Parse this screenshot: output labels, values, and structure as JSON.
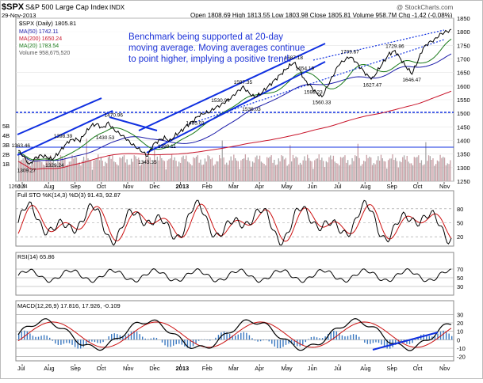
{
  "header": {
    "ticker": "$SPX",
    "name": "S&P 500 Large Cap Index",
    "exchange": "INDX",
    "date": "29-Nov-2013",
    "watermark": "@ StockCharts.com",
    "quote": "Open 1808.69  High 1813.55  Low 1803.98  Close 1805.81  Volume 958.7M  Chg -1.42 (-0.08%)"
  },
  "legend": {
    "main_title": "$SPX (Daily) 1805.81",
    "ma50": "MA(50) 1742.11",
    "ma200": "MA(200) 1650.24",
    "ma20": "MA(20) 1783.54",
    "volume": "Volume 958,675,520"
  },
  "annotation": "Benchmark being supported at 20-day moving average.   Moving averages continue to point higher, implying a positive trend.",
  "months": [
    "Jul",
    "Aug",
    "Sep",
    "Oct",
    "Nov",
    "Dec",
    "2013",
    "Feb",
    "Mar",
    "Apr",
    "May",
    "Jun",
    "Jul",
    "Aug",
    "Sep",
    "Oct",
    "Nov"
  ],
  "colors": {
    "price": "#000000",
    "ma50": "#1a1aa8",
    "ma200": "#c8142a",
    "ma20": "#1a7a1a",
    "volume_up": "#c9a0a6",
    "volume_down": "#a9a9a9",
    "trend": "#1030e0",
    "sto_k": "#000000",
    "sto_d": "#cc1111",
    "macd": "#000000",
    "signal": "#cc1111",
    "histogram": "#3a78c0"
  },
  "chart_data": [
    {
      "type": "line",
      "title": "$SPX (Daily) 1805.81",
      "y_ticks": [
        1250,
        1300,
        1350,
        1400,
        1450,
        1500,
        1550,
        1600,
        1650,
        1700,
        1750,
        1800,
        1850
      ],
      "volume_ticks": [
        "5B",
        "4B",
        "3B",
        "2B",
        "1B"
      ],
      "ylim": [
        1250,
        1850
      ],
      "price_labels": [
        "1363.46",
        "1309.27",
        "1266.74",
        "1398.39",
        "1329.24",
        "1430.53",
        "1470.96",
        "1343.35",
        "1398.11",
        "1485.01",
        "1530.94",
        "1597.35",
        "1536.03",
        "1687.18",
        "1654.19",
        "1598.23",
        "1560.33",
        "1709.67",
        "1627.47",
        "1729.86",
        "1646.47"
      ],
      "price_points": [
        {
          "t": 0,
          "v": 1363
        },
        {
          "t": 4,
          "v": 1340
        },
        {
          "t": 8,
          "v": 1310
        },
        {
          "t": 12,
          "v": 1335
        },
        {
          "t": 16,
          "v": 1345
        },
        {
          "t": 20,
          "v": 1340
        },
        {
          "t": 24,
          "v": 1330
        },
        {
          "t": 28,
          "v": 1350
        },
        {
          "t": 32,
          "v": 1375
        },
        {
          "t": 36,
          "v": 1398
        },
        {
          "t": 40,
          "v": 1405
        },
        {
          "t": 44,
          "v": 1400
        },
        {
          "t": 48,
          "v": 1430
        },
        {
          "t": 52,
          "v": 1455
        },
        {
          "t": 56,
          "v": 1460
        },
        {
          "t": 60,
          "v": 1445
        },
        {
          "t": 64,
          "v": 1465
        },
        {
          "t": 68,
          "v": 1440
        },
        {
          "t": 72,
          "v": 1425
        },
        {
          "t": 76,
          "v": 1410
        },
        {
          "t": 80,
          "v": 1390
        },
        {
          "t": 84,
          "v": 1375
        },
        {
          "t": 88,
          "v": 1360
        },
        {
          "t": 92,
          "v": 1343
        },
        {
          "t": 96,
          "v": 1385
        },
        {
          "t": 100,
          "v": 1400
        },
        {
          "t": 104,
          "v": 1410
        },
        {
          "t": 108,
          "v": 1398
        },
        {
          "t": 112,
          "v": 1420
        },
        {
          "t": 116,
          "v": 1435
        },
        {
          "t": 120,
          "v": 1455
        },
        {
          "t": 124,
          "v": 1470
        },
        {
          "t": 128,
          "v": 1490
        },
        {
          "t": 132,
          "v": 1500
        },
        {
          "t": 136,
          "v": 1505
        },
        {
          "t": 140,
          "v": 1520
        },
        {
          "t": 144,
          "v": 1530
        },
        {
          "t": 148,
          "v": 1545
        },
        {
          "t": 152,
          "v": 1560
        },
        {
          "t": 156,
          "v": 1580
        },
        {
          "t": 160,
          "v": 1597
        },
        {
          "t": 164,
          "v": 1575
        },
        {
          "t": 168,
          "v": 1560
        },
        {
          "t": 172,
          "v": 1570
        },
        {
          "t": 176,
          "v": 1590
        },
        {
          "t": 180,
          "v": 1610
        },
        {
          "t": 184,
          "v": 1630
        },
        {
          "t": 188,
          "v": 1650
        },
        {
          "t": 192,
          "v": 1670
        },
        {
          "t": 196,
          "v": 1687
        },
        {
          "t": 200,
          "v": 1660
        },
        {
          "t": 204,
          "v": 1620
        },
        {
          "t": 208,
          "v": 1600
        },
        {
          "t": 212,
          "v": 1575
        },
        {
          "t": 216,
          "v": 1560
        },
        {
          "t": 220,
          "v": 1600
        },
        {
          "t": 224,
          "v": 1640
        },
        {
          "t": 228,
          "v": 1680
        },
        {
          "t": 232,
          "v": 1695
        },
        {
          "t": 236,
          "v": 1709
        },
        {
          "t": 240,
          "v": 1690
        },
        {
          "t": 244,
          "v": 1665
        },
        {
          "t": 248,
          "v": 1640
        },
        {
          "t": 252,
          "v": 1627
        },
        {
          "t": 256,
          "v": 1660
        },
        {
          "t": 260,
          "v": 1690
        },
        {
          "t": 264,
          "v": 1720
        },
        {
          "t": 268,
          "v": 1729
        },
        {
          "t": 272,
          "v": 1700
        },
        {
          "t": 276,
          "v": 1670
        },
        {
          "t": 280,
          "v": 1646
        },
        {
          "t": 284,
          "v": 1690
        },
        {
          "t": 288,
          "v": 1740
        },
        {
          "t": 292,
          "v": 1760
        },
        {
          "t": 296,
          "v": 1770
        },
        {
          "t": 300,
          "v": 1790
        },
        {
          "t": 304,
          "v": 1800
        },
        {
          "t": 308,
          "v": 1806
        }
      ]
    },
    {
      "type": "line",
      "title": "Full STO %K(14,3) %D(3) 91.43, 92.87",
      "y_ticks": [
        20,
        50,
        80
      ],
      "ylim": [
        0,
        100
      ]
    },
    {
      "type": "line",
      "title": "RSI(14) 65.86",
      "y_ticks": [
        30,
        50,
        70
      ],
      "ylim": [
        10,
        90
      ]
    },
    {
      "type": "line",
      "title": "MACD(12,26,9) 17.816, 17.926, -0.109",
      "y_ticks": [
        -20,
        -10,
        0,
        10,
        20,
        30
      ],
      "ylim": [
        -25,
        35
      ]
    }
  ]
}
